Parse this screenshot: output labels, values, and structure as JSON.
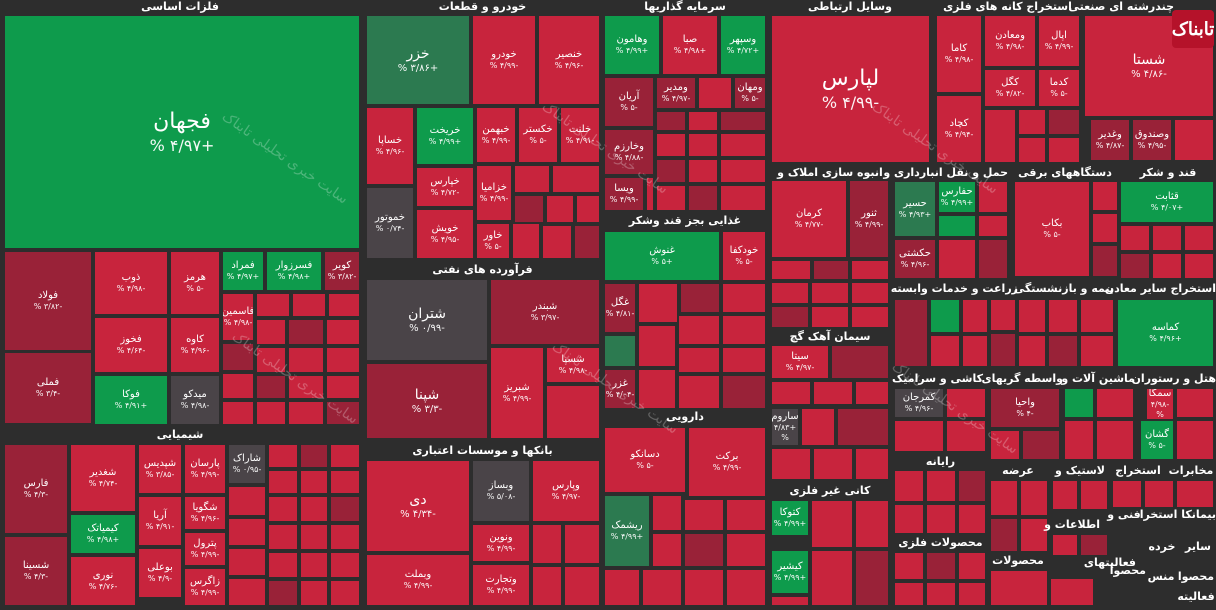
{
  "sections": [
    {
      "id": "s1",
      "label": "فلزات اساسی"
    },
    {
      "id": "s2",
      "label": "خودرو و قطعات"
    },
    {
      "id": "s3",
      "label": "سرمایه گذاریها"
    },
    {
      "id": "s4",
      "label": "وسایل ارتباطی"
    },
    {
      "id": "s5",
      "label": "استخراج کانه های فلزی"
    },
    {
      "id": "s6",
      "label": "چندرشته ای صنعتی"
    },
    {
      "id": "s7",
      "label": "شیمیایی"
    },
    {
      "id": "s8",
      "label": "فرآورده های نفتی"
    },
    {
      "id": "s9",
      "label": "غذایی بجز قند وشکر"
    },
    {
      "id": "s10",
      "label": "انبوه سازی املاک و"
    },
    {
      "id": "s11",
      "label": "حمل و نقل انبارداری و"
    },
    {
      "id": "s12",
      "label": "دستگاههای برقی"
    },
    {
      "id": "s13",
      "label": "قند و شکر"
    },
    {
      "id": "s14",
      "label": "زراعت و خدمات وابسته"
    },
    {
      "id": "s15",
      "label": "بیمه و بازنشستگی"
    },
    {
      "id": "s16",
      "label": "استخراج سایر معادن"
    },
    {
      "id": "s17",
      "label": "سیمان آهک گچ"
    },
    {
      "id": "s18",
      "label": "دارویی"
    },
    {
      "id": "s19",
      "label": "بانکها و موسسات اعتباری"
    },
    {
      "id": "s20",
      "label": "کاشی و سرامیک"
    },
    {
      "id": "s21",
      "label": "واسطه گریهای"
    },
    {
      "id": "s22",
      "label": "ماشین آلات و"
    },
    {
      "id": "s23",
      "label": "هتل و رستوران"
    },
    {
      "id": "s24",
      "label": "کانی غیر فلزی"
    },
    {
      "id": "s25",
      "label": "رایانه"
    },
    {
      "id": "s26",
      "label": "عرضه"
    },
    {
      "id": "s27",
      "label": "لاستیک و"
    },
    {
      "id": "s28",
      "label": "استخراج"
    },
    {
      "id": "s29",
      "label": "مخابرات"
    },
    {
      "id": "s30",
      "label": "محصولات فلزی"
    },
    {
      "id": "s31",
      "label": "محصولات"
    },
    {
      "id": "s32",
      "label": "اطلاعات و"
    },
    {
      "id": "s33",
      "label": "فنی و"
    },
    {
      "id": "s34",
      "label": "بیمانکا استخرا"
    },
    {
      "id": "s35",
      "label": "فعالیتهای"
    },
    {
      "id": "s36",
      "label": "سایر"
    },
    {
      "id": "s37",
      "label": "خرده"
    },
    {
      "id": "s38",
      "label": "محصوا"
    },
    {
      "id": "s39",
      "label": "منس"
    },
    {
      "id": "s40",
      "label": "محصوا"
    },
    {
      "id": "s41",
      "label": "فعالیته"
    }
  ],
  "tiles": [
    {
      "id": "t1",
      "name": "فجهان",
      "pct": "+۴/۹۷ %"
    },
    {
      "id": "t2",
      "name": "فولاد",
      "pct": "-۳/۸۲ %"
    },
    {
      "id": "t3",
      "name": "فملی",
      "pct": "-۳/۴ %"
    },
    {
      "id": "t4",
      "name": "ذوب",
      "pct": "-۴/۹۸ %"
    },
    {
      "id": "t5",
      "name": "هرمز",
      "pct": "-۵ %"
    },
    {
      "id": "t6",
      "name": "فمراد",
      "pct": "+۴/۹۷ %"
    },
    {
      "id": "t7",
      "name": "فسرزوار",
      "pct": "+۴/۹۸ %"
    },
    {
      "id": "t8",
      "name": "کویر",
      "pct": "-۳/۸۲ %"
    },
    {
      "id": "t9",
      "name": "فخوز",
      "pct": "-۴/۶۴ %"
    },
    {
      "id": "t10",
      "name": "کاوه",
      "pct": "-۴/۹۶ %"
    },
    {
      "id": "t11",
      "name": "فاسمین",
      "pct": "-۴/۹۸ %"
    },
    {
      "id": "t12",
      "name": "فوکا",
      "pct": "+۴/۹۱ %"
    },
    {
      "id": "t13",
      "name": "میدکو",
      "pct": "-۴/۹۸ %"
    },
    {
      "id": "t14",
      "name": "خزر",
      "pct": "+۳/۸۶ %"
    },
    {
      "id": "t15",
      "name": "خودرو",
      "pct": "-۴/۹۹ %"
    },
    {
      "id": "t16",
      "name": "خنصير",
      "pct": "-۴/۹۶ %"
    },
    {
      "id": "t17",
      "name": "خساپا",
      "pct": "-۴/۹۶ %"
    },
    {
      "id": "t18",
      "name": "خریخت",
      "pct": "+۴/۹۹ %"
    },
    {
      "id": "t19",
      "name": "خبهمن",
      "pct": "-۴/۹۹ %"
    },
    {
      "id": "t20",
      "name": "خکستر",
      "pct": "-۵ %"
    },
    {
      "id": "t21",
      "name": "خلنت",
      "pct": "-۴/۹۱ %"
    },
    {
      "id": "t22",
      "name": "خپارس",
      "pct": "-۴/۷۲ %"
    },
    {
      "id": "t23",
      "name": "خزامیا",
      "pct": "-۴/۹۹ %"
    },
    {
      "id": "t24",
      "name": "خمحرکه",
      "pct": "-۴/۹۸ %"
    },
    {
      "id": "t25",
      "name": "خموتور",
      "pct": "-۰/۷۴ %"
    },
    {
      "id": "t26",
      "name": "خویش",
      "pct": "-۴/۹۵ %"
    },
    {
      "id": "t27",
      "name": "خاور",
      "pct": "-۵ %"
    },
    {
      "id": "t28",
      "name": "وهامون",
      "pct": "+۴/۹۹ %"
    },
    {
      "id": "t29",
      "name": "صبا",
      "pct": "+۴/۹۸ %"
    },
    {
      "id": "t30",
      "name": "وسپهر",
      "pct": "+۴/۷۲ %"
    },
    {
      "id": "t31",
      "name": "وصنا",
      "pct": "-۴/۹۹ %"
    },
    {
      "id": "t32",
      "name": "ومدیر",
      "pct": "-۴/۹۷ %"
    },
    {
      "id": "t33",
      "name": "ومهان",
      "pct": "-۵ %"
    },
    {
      "id": "t34",
      "name": "آریان",
      "pct": "-۵ %"
    },
    {
      "id": "t35",
      "name": "وخارزم",
      "pct": "-۴/۸۸ %"
    },
    {
      "id": "t36",
      "name": "ویسا",
      "pct": "-۴/۹۹ %"
    },
    {
      "id": "t37",
      "name": "لپارس",
      "pct": "-۴/۹۹ %"
    },
    {
      "id": "t38",
      "name": "کاما",
      "pct": "-۴/۹۸ %"
    },
    {
      "id": "t39",
      "name": "ومعادن",
      "pct": "-۴/۹۸ %"
    },
    {
      "id": "t40",
      "name": "اپال",
      "pct": "-۴/۹۹ %"
    },
    {
      "id": "t41",
      "name": "کگل",
      "pct": "-۴/۸۲ %"
    },
    {
      "id": "t42",
      "name": "کدما",
      "pct": "-۵ %"
    },
    {
      "id": "t43",
      "name": "کچاد",
      "pct": "-۴/۹۴ %"
    },
    {
      "id": "t44",
      "name": "شستا",
      "pct": "-۴/۸۶ %"
    },
    {
      "id": "t45",
      "name": "وغدير",
      "pct": "-۴/۸۷ %"
    },
    {
      "id": "t46",
      "name": "وصندوق",
      "pct": "-۴/۹۵ %"
    },
    {
      "id": "t47",
      "name": "شيمدير",
      "pct": ""
    },
    {
      "id": "t48",
      "name": "کرمان",
      "pct": "-۴/۷۷ %"
    },
    {
      "id": "t49",
      "name": "ثنور",
      "pct": "-۴/۹۹ %"
    },
    {
      "id": "t50",
      "name": "حسير",
      "pct": "+۴/۹۳ %"
    },
    {
      "id": "t51",
      "name": "حفارس",
      "pct": "+۴/۹۹ %"
    },
    {
      "id": "t52",
      "name": "حكشتی",
      "pct": "-۴/۹۶ %"
    },
    {
      "id": "t53",
      "name": "بکاب",
      "pct": "-۵ %"
    },
    {
      "id": "t54",
      "name": "قثابت",
      "pct": "+۴/۰۷ %"
    },
    {
      "id": "t55",
      "name": "شتران",
      "pct": "-۰/۹۹ %"
    },
    {
      "id": "t56",
      "name": "شپنا",
      "pct": "-۳/۳ %"
    },
    {
      "id": "t57",
      "name": "شبندر",
      "pct": "-۳/۹۷ %"
    },
    {
      "id": "t58",
      "name": "شسپا",
      "pct": "-۴/۹۸ %"
    },
    {
      "id": "t59",
      "name": "شبریز",
      "pct": "-۴/۹۹ %"
    },
    {
      "id": "t60",
      "name": "غنوش",
      "pct": "+۵ %"
    },
    {
      "id": "t61",
      "name": "خودکفا",
      "pct": "-۵ %"
    },
    {
      "id": "t62",
      "name": "غگل",
      "pct": "-۴/۸۱ %"
    },
    {
      "id": "t63",
      "name": "غزر",
      "pct": "-۴/۰۴ %"
    },
    {
      "id": "t64",
      "name": "کماسه",
      "pct": "+۴/۹۶ %"
    },
    {
      "id": "t65",
      "name": "سیتا",
      "pct": "-۴/۹۷ %"
    },
    {
      "id": "t66",
      "name": "ساروم",
      "pct": "+۴/۸۳ %"
    },
    {
      "id": "t67",
      "name": "دسانکو",
      "pct": "-۵ %"
    },
    {
      "id": "t68",
      "name": "برکت",
      "pct": "-۴/۹۹ %"
    },
    {
      "id": "t69",
      "name": "ریشمک",
      "pct": "+۴/۹۹ %"
    },
    {
      "id": "t70",
      "name": "دی",
      "pct": "-۴/۳۴ %"
    },
    {
      "id": "t71",
      "name": "وبساز",
      "pct": "-۵/۰۸ %"
    },
    {
      "id": "t72",
      "name": "وپارس",
      "pct": "-۴/۹۷ %"
    },
    {
      "id": "t73",
      "name": "ونوین",
      "pct": "-۴/۹۹ %"
    },
    {
      "id": "t74",
      "name": "وبملت",
      "pct": "-۴/۹۹ %"
    },
    {
      "id": "t75",
      "name": "وتجارت",
      "pct": "-۴/۹۹ %"
    },
    {
      "id": "t76",
      "name": "کمرجان",
      "pct": "-۴/۹۶ %"
    },
    {
      "id": "t77",
      "name": "واحیا",
      "pct": "-۴ %"
    },
    {
      "id": "t78",
      "name": "سمگا",
      "pct": "-۴/۹۸ %"
    },
    {
      "id": "t79",
      "name": "گشان",
      "pct": "-۵ %"
    },
    {
      "id": "t80",
      "name": "کتوکا",
      "pct": "+۴/۹۹ %"
    },
    {
      "id": "t81",
      "name": "کیشیر",
      "pct": "+۴/۹۹ %"
    },
    {
      "id": "t82",
      "name": "فارس",
      "pct": "-۴/۳ %"
    },
    {
      "id": "t83",
      "name": "شغدیر",
      "pct": "-۴/۷۴ %"
    },
    {
      "id": "t84",
      "name": "شپدیس",
      "pct": "-۳/۸۵ %"
    },
    {
      "id": "t85",
      "name": "پارسان",
      "pct": "-۴/۹۹ %"
    },
    {
      "id": "t86",
      "name": "شاراک",
      "pct": "-۰/۹۵ %"
    },
    {
      "id": "t87",
      "name": "کیمیاتک",
      "pct": "+۴/۹۸ %"
    },
    {
      "id": "t88",
      "name": "آریا",
      "pct": "-۴/۹۱ %"
    },
    {
      "id": "t89",
      "name": "شگویا",
      "pct": "-۴/۹۶ %"
    },
    {
      "id": "t90",
      "name": "شسینا",
      "pct": "-۴/۳ %"
    },
    {
      "id": "t91",
      "name": "نوری",
      "pct": "-۴/۷۶ %"
    },
    {
      "id": "t92",
      "name": "بوعلی",
      "pct": "-۴/۹ %"
    },
    {
      "id": "t93",
      "name": "پترول",
      "pct": "-۴/۹۹ %"
    },
    {
      "id": "t94",
      "name": "زاگرس",
      "pct": "-۴/۹۹ %"
    }
  ],
  "watermark": "سایت خبری تحلیلی تابناک",
  "logo": "تابناک"
}
